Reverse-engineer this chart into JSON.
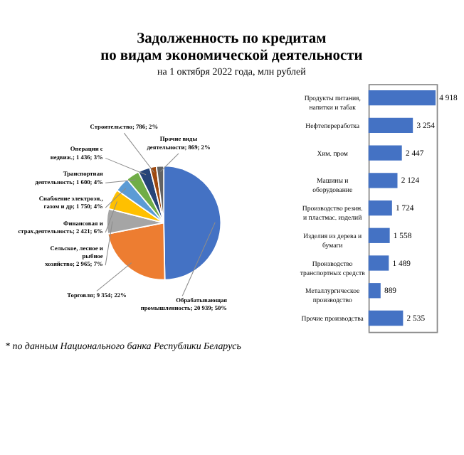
{
  "chart_data": [
    {
      "type": "pie",
      "title": "Задолженность по кредитам по видам экономической деятельности",
      "subtitle": "на 1 октября 2022 года, млн рублей",
      "annotations": [
        "* по данным Национального банка Республики Беларусь"
      ],
      "legend": false,
      "categories": [
        "Обрабатывающая промышленность",
        "Торговля",
        "Сельское, лесное и рыбное хозяйство",
        "Финансовая и страх.деятельность",
        "Снабжение электроэн., газом и др",
        "Транспортная деятельность",
        "Операции с недвиж.",
        "Строительство",
        "Прочие виды деятельности"
      ],
      "values": [
        20939,
        9354,
        2965,
        2421,
        1750,
        1600,
        1436,
        786,
        869
      ],
      "value_labels": [
        "20 939; 50%",
        "9 354; 22%",
        "2 965; 7%",
        "2 421; 6%",
        "1 750; 4%",
        "1 600; 4%",
        "1 436; 3%",
        "786; 2%",
        "869; 2%"
      ],
      "colors": [
        "#4472c4",
        "#ed7d31",
        "#a5a5a5",
        "#ffc000",
        "#5b9bd5",
        "#70ad47",
        "#264478",
        "#9e480e",
        "#636363"
      ]
    },
    {
      "type": "bar",
      "orientation": "horizontal",
      "color": "#4472c4",
      "categories": [
        "Продукты питания, напитки и табак",
        "Нефтепереработка",
        "Хим. пром",
        "Машины и оборудование",
        "Производство резин. и пластмас. изделий",
        "Изделия из дерева и бумаги",
        "Производство транспортных средств",
        "Металлургическое производство",
        "Прочие производства"
      ],
      "values": [
        4918,
        3254,
        2447,
        2124,
        1724,
        1558,
        1489,
        889,
        2535
      ],
      "value_labels": [
        "4 918",
        "3 254",
        "2 447",
        "2 124",
        "1 724",
        "1 558",
        "1 489",
        "889",
        "2 535"
      ]
    }
  ]
}
